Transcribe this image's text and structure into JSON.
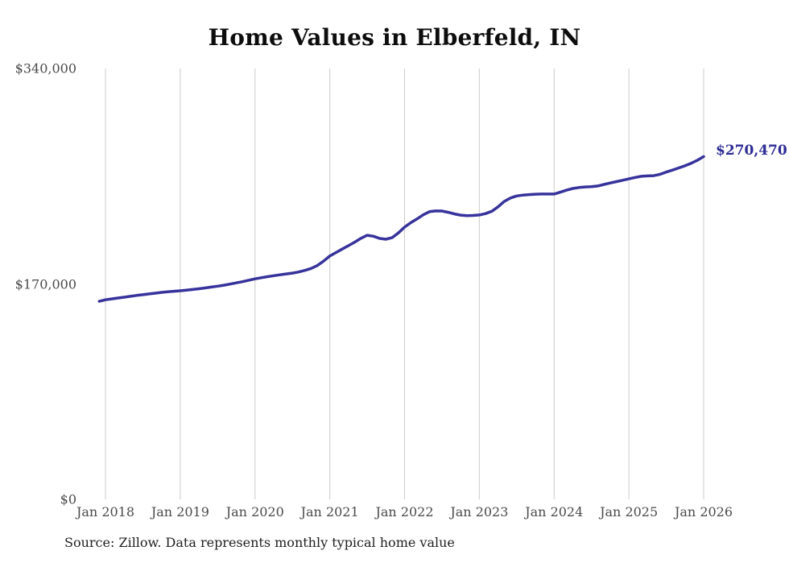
{
  "title": "Home Values in Elberfeld, IN",
  "source_note": "Source: Zillow. Data represents monthly typical home value",
  "end_label": "$270,470",
  "colors": {
    "line": "#37339c",
    "end_label": "#2d2b96",
    "gridline": "#cccccc",
    "title": "#0d0d0d",
    "tick_label": "#4a4a4a",
    "source": "#1f1f1f",
    "background": "#ffffff"
  },
  "chart_data": {
    "type": "line",
    "title": "Home Values in Elberfeld, IN",
    "xlabel": "",
    "ylabel": "",
    "ylim": [
      0,
      340000
    ],
    "grid": "vertical-only",
    "legend": "none",
    "line_marker": "none",
    "y_ticks": [
      {
        "label": "$340,000",
        "value": 340000
      },
      {
        "label": "$170,000",
        "value": 170000
      },
      {
        "label": "$0",
        "value": 0
      }
    ],
    "x_tick_labels": [
      "Jan 2018",
      "Jan 2019",
      "Jan 2020",
      "Jan 2021",
      "Jan 2022",
      "Jan 2023",
      "Jan 2024",
      "Jan 2025",
      "Jan 2026"
    ],
    "start_month": "2017-12",
    "end_month": "2026-01",
    "months_per_point": 1,
    "final_value": 270470,
    "final_value_label": "$270,470",
    "series": [
      {
        "name": "Monthly typical home value",
        "values": [
          156300,
          157500,
          158200,
          158900,
          159500,
          160200,
          160900,
          161500,
          162100,
          162700,
          163300,
          163800,
          164200,
          164600,
          165100,
          165600,
          166200,
          166800,
          167500,
          168200,
          169000,
          169900,
          170800,
          171800,
          172900,
          174000,
          174900,
          175700,
          176500,
          177200,
          177900,
          178500,
          179400,
          180700,
          182200,
          184500,
          188000,
          192000,
          194800,
          197500,
          200200,
          203000,
          206000,
          208400,
          207600,
          205900,
          205300,
          206500,
          210200,
          214800,
          218300,
          221300,
          224500,
          227000,
          227600,
          227500,
          226500,
          225200,
          224300,
          223900,
          224000,
          224400,
          225500,
          227300,
          230800,
          235100,
          237800,
          239400,
          240100,
          240500,
          240800,
          240900,
          240900,
          240900,
          242400,
          244000,
          245300,
          246100,
          246500,
          246700,
          247300,
          248500,
          249600,
          250700,
          251800,
          252900,
          254000,
          254900,
          255200,
          255400,
          256500,
          258300,
          259800,
          261500,
          263200,
          265200,
          267600,
          270470
        ]
      }
    ]
  }
}
